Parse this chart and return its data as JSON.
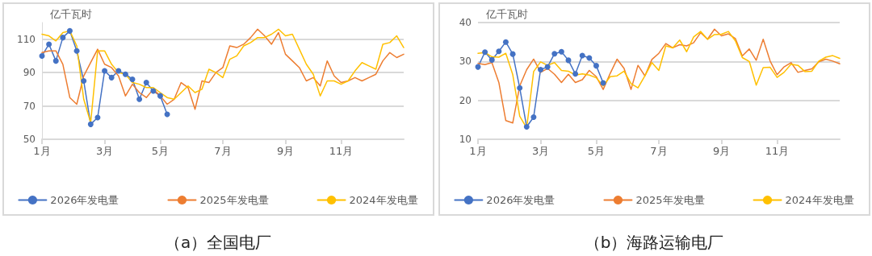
{
  "chart_data": [
    {
      "type": "line",
      "title": "（a）全国电厂",
      "ylabel": "亿千瓦时",
      "categories": [
        "1月",
        null,
        null,
        null,
        null,
        null,
        null,
        null,
        null,
        "3月",
        null,
        null,
        null,
        null,
        null,
        null,
        null,
        "5月",
        null,
        null,
        null,
        null,
        null,
        null,
        null,
        null,
        "7月",
        null,
        null,
        null,
        null,
        null,
        null,
        null,
        null,
        "9月",
        null,
        null,
        null,
        null,
        null,
        null,
        null,
        "11月",
        null,
        null,
        null,
        null,
        null,
        null,
        null,
        null,
        null
      ],
      "ylim": [
        50,
        120
      ],
      "yticks": [
        50,
        70,
        90,
        110
      ],
      "grid": "y",
      "legend": "bottom",
      "line_style": "solid",
      "series": [
        {
          "name": "2026年发电量",
          "color": "#4472c4",
          "marker": "circle",
          "values": [
            100,
            107,
            97,
            111,
            115,
            103,
            85,
            59,
            63,
            91,
            87,
            91,
            89,
            86,
            74,
            84,
            79,
            76,
            65,
            null,
            null,
            null,
            null,
            null,
            null,
            null,
            null,
            null,
            null,
            null,
            null,
            null,
            null,
            null,
            null,
            null,
            null,
            null,
            null,
            null,
            null,
            null,
            null,
            null,
            null,
            null,
            null,
            null,
            null,
            null,
            null,
            null,
            null
          ]
        },
        {
          "name": "2025年发电量",
          "color": "#ed7d31",
          "marker": "none",
          "values": [
            102,
            103,
            103,
            95,
            75,
            71,
            88,
            96,
            104,
            95,
            93,
            88,
            76,
            83,
            78,
            75,
            80,
            76,
            71,
            74,
            84,
            81,
            68,
            85,
            84,
            90,
            93,
            106,
            105,
            107,
            111,
            116,
            112,
            107,
            114,
            101,
            97,
            93,
            85,
            87,
            82,
            97,
            88,
            84,
            85,
            87,
            85,
            87,
            89,
            97,
            102,
            99,
            101
          ]
        },
        {
          "name": "2024年发电量",
          "color": "#ffc000",
          "marker": "none",
          "values": [
            113,
            112,
            109,
            114,
            115,
            106,
            74,
            60,
            103,
            103,
            95,
            90,
            89,
            84,
            83,
            81,
            81,
            78,
            75,
            74,
            78,
            82,
            78,
            80,
            92,
            90,
            87,
            98,
            100,
            106,
            108,
            111,
            111,
            113,
            116,
            112,
            113,
            104,
            95,
            89,
            76,
            85,
            85,
            83,
            85,
            91,
            96,
            94,
            92,
            107,
            108,
            112,
            105
          ]
        }
      ]
    },
    {
      "type": "line",
      "title": "（b）海路运输电厂",
      "ylabel": "亿千瓦时",
      "categories": [
        "1月",
        null,
        null,
        null,
        null,
        null,
        null,
        null,
        null,
        "3月",
        null,
        null,
        null,
        null,
        null,
        null,
        null,
        "5月",
        null,
        null,
        null,
        null,
        null,
        null,
        null,
        null,
        "7月",
        null,
        null,
        null,
        null,
        null,
        null,
        null,
        null,
        "9月",
        null,
        null,
        null,
        null,
        null,
        null,
        null,
        "11月",
        null,
        null,
        null,
        null,
        null,
        null,
        null,
        null,
        null
      ],
      "ylim": [
        10,
        40
      ],
      "yticks": [
        10,
        20,
        30,
        40
      ],
      "grid": "y",
      "legend": "bottom",
      "line_style": "solid",
      "series": [
        {
          "name": "2026年发电量",
          "color": "#4472c4",
          "marker": "circle",
          "values": [
            28.6,
            32.4,
            30.4,
            32.6,
            35,
            31.9,
            23.2,
            13.2,
            15.7,
            27.9,
            28.6,
            32,
            32.5,
            30.3,
            26.8,
            31.5,
            30.9,
            28.9,
            24.5,
            null,
            null,
            null,
            null,
            null,
            null,
            null,
            null,
            null,
            null,
            null,
            null,
            null,
            null,
            null,
            null,
            null,
            null,
            null,
            null,
            null,
            null,
            null,
            null,
            null,
            null,
            null,
            null,
            null,
            null,
            null,
            null,
            null,
            null
          ]
        },
        {
          "name": "2025年发电量",
          "color": "#ed7d31",
          "marker": "none",
          "values": [
            29.5,
            29.2,
            29.7,
            24.6,
            14.8,
            14.2,
            23.7,
            27.9,
            30.6,
            27.2,
            28.2,
            26.7,
            24.6,
            26.7,
            24.6,
            25.3,
            27.7,
            26.1,
            22.8,
            26.9,
            30.6,
            28.2,
            22.8,
            29,
            26.3,
            30.5,
            32.1,
            34.6,
            33.5,
            34.3,
            34,
            34.8,
            37.4,
            35.7,
            38.3,
            36.6,
            37.1,
            35.9,
            31.4,
            33.2,
            30.3,
            35.7,
            30.1,
            26.6,
            28.6,
            29.7,
            27.2,
            27.7,
            28.1,
            29.9,
            30.6,
            30.1,
            29.4
          ]
        },
        {
          "name": "2024年发电量",
          "color": "#ffc000",
          "marker": "none",
          "values": [
            32.1,
            32.3,
            31.2,
            31.1,
            32.1,
            26.6,
            15.9,
            12.9,
            27.4,
            29.9,
            29,
            29.7,
            27.7,
            27.5,
            26.5,
            26.8,
            26.5,
            25.8,
            23.7,
            26.1,
            26.3,
            27.5,
            24.3,
            23.2,
            26.3,
            29.7,
            27.7,
            34,
            33.5,
            35.5,
            32.5,
            36.3,
            37.7,
            35.7,
            36.9,
            37,
            37.7,
            35.3,
            31,
            30,
            23.9,
            28.4,
            28.5,
            25.9,
            27.2,
            29.3,
            29,
            27.4,
            27.5,
            30.1,
            31.1,
            31.5,
            30.8
          ]
        }
      ]
    }
  ]
}
